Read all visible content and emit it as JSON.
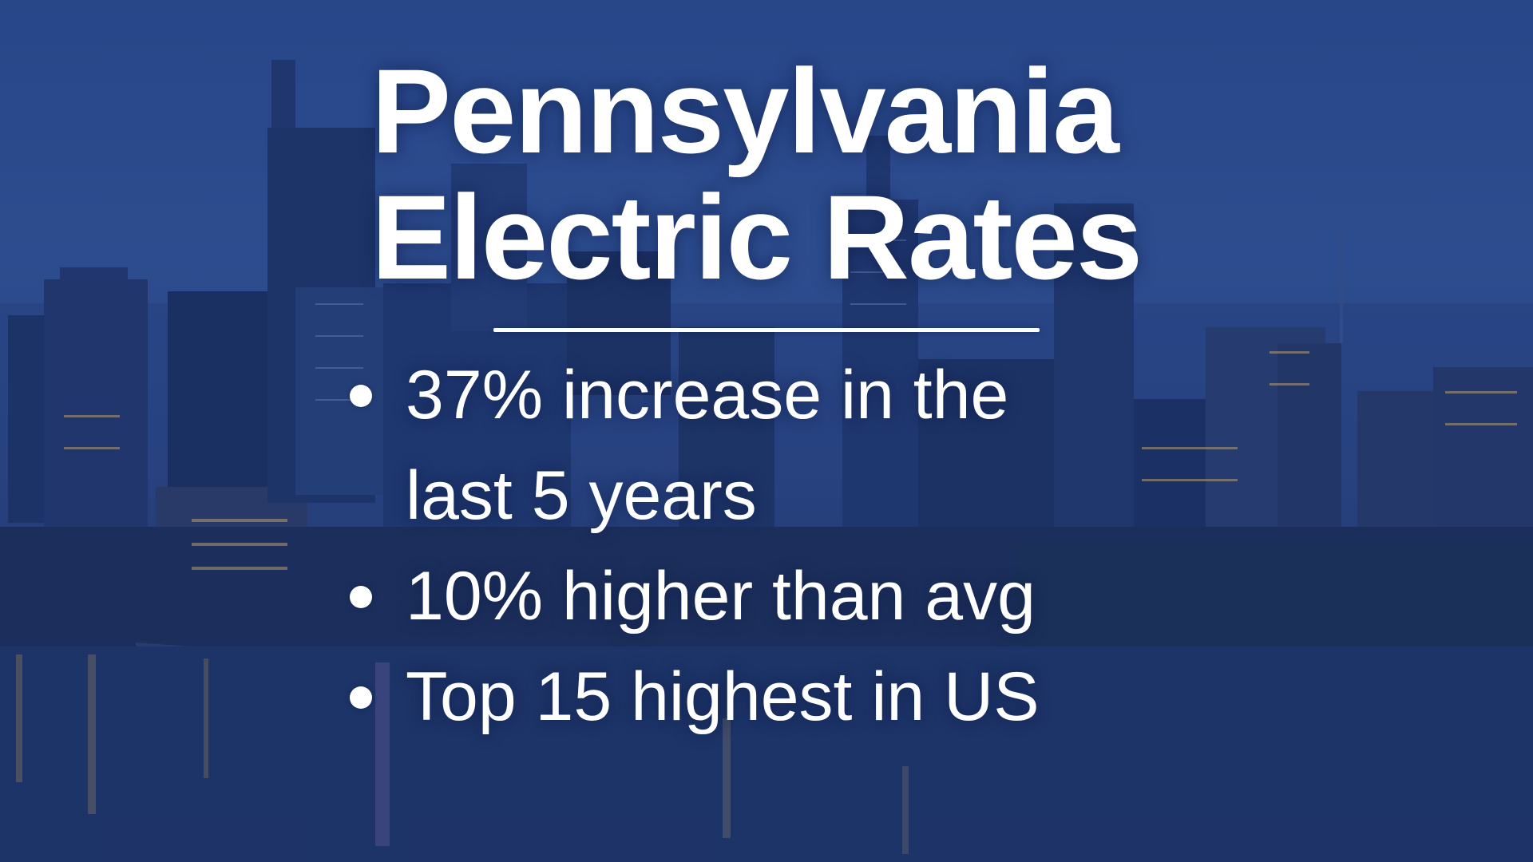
{
  "title": {
    "line1": "Pennsylvania",
    "line2": "Electric Rates"
  },
  "bullets": [
    {
      "line1": "37% increase in the",
      "line2": "last 5 years"
    },
    {
      "line1": "10% higher than avg"
    },
    {
      "line1": "Top 15 highest in US"
    }
  ],
  "colors": {
    "text": "#ffffff",
    "sky": "#2c4f94",
    "water": "#1b3263"
  },
  "background_image": "city-skyline-at-dusk-with-river"
}
